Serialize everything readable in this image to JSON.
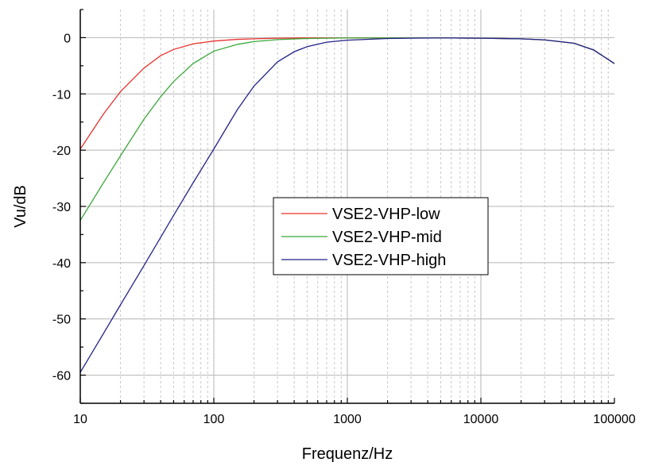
{
  "chart_data": {
    "type": "line",
    "x_scale": "log",
    "xlim": [
      10,
      100000
    ],
    "ylim": [
      -65,
      5
    ],
    "grid": true,
    "xlabel": "Frequenz/Hz",
    "ylabel": "Vu/dB",
    "x_tick_labels": [
      "10",
      "100",
      "1000",
      "10000",
      "100000"
    ],
    "x_ticks": [
      10,
      100,
      1000,
      10000,
      100000
    ],
    "y_ticks": [
      0,
      -10,
      -20,
      -30,
      -40,
      -50,
      -60
    ],
    "y_tick_labels": [
      "0",
      "-10",
      "-20",
      "-30",
      "-40",
      "-50",
      "-60"
    ],
    "legend_position": "center-right",
    "series": [
      {
        "name": "VSE2-VHP-low",
        "color": "#e8322d",
        "x": [
          10,
          15,
          20,
          30,
          40,
          50,
          70,
          100,
          150,
          200,
          300,
          500,
          1000,
          3000,
          5000,
          10000,
          20000,
          30000,
          50000,
          70000,
          100000
        ],
        "y": [
          -19.8,
          -13.5,
          -9.6,
          -5.4,
          -3.2,
          -2.1,
          -1.1,
          -0.6,
          -0.3,
          -0.2,
          -0.1,
          -0.05,
          -0.05,
          -0.05,
          -0.05,
          -0.1,
          -0.2,
          -0.4,
          -1.0,
          -2.2,
          -4.6
        ]
      },
      {
        "name": "VSE2-VHP-mid",
        "color": "#3aa83a",
        "x": [
          10,
          15,
          20,
          30,
          40,
          50,
          70,
          100,
          150,
          200,
          300,
          500,
          1000,
          3000,
          5000,
          10000,
          20000,
          30000,
          50000,
          70000,
          100000
        ],
        "y": [
          -32.5,
          -25.7,
          -21.0,
          -14.5,
          -10.5,
          -7.8,
          -4.6,
          -2.4,
          -1.2,
          -0.7,
          -0.35,
          -0.15,
          -0.05,
          -0.05,
          -0.05,
          -0.1,
          -0.2,
          -0.4,
          -1.0,
          -2.2,
          -4.6
        ]
      },
      {
        "name": "VSE2-VHP-high",
        "color": "#22228a",
        "x": [
          10,
          15,
          20,
          30,
          40,
          50,
          70,
          100,
          150,
          200,
          300,
          400,
          500,
          700,
          1000,
          2000,
          3000,
          5000,
          10000,
          20000,
          30000,
          50000,
          70000,
          100000
        ],
        "y": [
          -59.5,
          -52.5,
          -47.5,
          -40.5,
          -35.5,
          -31.6,
          -25.8,
          -19.8,
          -12.8,
          -8.6,
          -4.3,
          -2.5,
          -1.6,
          -0.8,
          -0.45,
          -0.15,
          -0.1,
          -0.05,
          -0.1,
          -0.2,
          -0.4,
          -1.0,
          -2.2,
          -4.6
        ]
      }
    ]
  }
}
